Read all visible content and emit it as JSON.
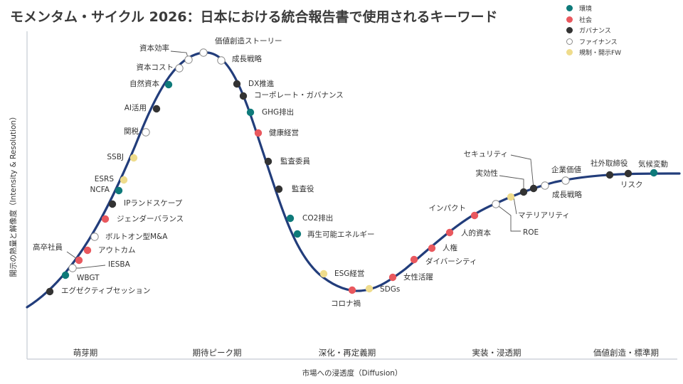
{
  "title": "モメンタム・サイクル 2026：日本における統合報告書で使用されるキーワード",
  "legend": [
    {
      "key": "env",
      "label": "環境",
      "color": "#0e7a7a"
    },
    {
      "key": "soc",
      "label": "社会",
      "color": "#e9585e"
    },
    {
      "key": "gov",
      "label": "ガバナンス",
      "color": "#333333"
    },
    {
      "key": "fin",
      "label": "ファイナンス",
      "color": "#ffffff"
    },
    {
      "key": "reg",
      "label": "規制・開示FW",
      "color": "#efdc8c"
    }
  ],
  "colors": {
    "curve": "#223d7b",
    "axis": "#c5cbd3",
    "finance_border": "#8a8a8a"
  },
  "chart_data": {
    "type": "scatter",
    "title": "",
    "xlabel": "市場への浸透度（Diffusion）",
    "ylabel": "開示の熱量と解像度（Intensity & Resolution）",
    "phases": [
      "萌芽期",
      "期待ピーク期",
      "深化・再定義期",
      "実装・浸透期",
      "価値創造・標準期"
    ],
    "points": [
      {
        "label": "エグゼクティブセッション",
        "cat": "gov"
      },
      {
        "label": "WBGT",
        "cat": "env"
      },
      {
        "label": "IESBA",
        "cat": "fin"
      },
      {
        "label": "高卒社員",
        "cat": "soc"
      },
      {
        "label": "アウトカム",
        "cat": "soc"
      },
      {
        "label": "ボルトオン型M&A",
        "cat": "fin"
      },
      {
        "label": "ジェンダーバランス",
        "cat": "soc"
      },
      {
        "label": "IPランドスケープ",
        "cat": "gov"
      },
      {
        "label": "NCFA",
        "cat": "env"
      },
      {
        "label": "ESRS",
        "cat": "reg"
      },
      {
        "label": "SSBJ",
        "cat": "reg"
      },
      {
        "label": "関税",
        "cat": "fin"
      },
      {
        "label": "AI活用",
        "cat": "gov"
      },
      {
        "label": "自然資本",
        "cat": "env"
      },
      {
        "label": "資本コスト",
        "cat": "fin"
      },
      {
        "label": "資本効率",
        "cat": "fin"
      },
      {
        "label": "価値創造ストーリー",
        "cat": "fin"
      },
      {
        "label": "成長戦略",
        "cat": "fin"
      },
      {
        "label": "DX推進",
        "cat": "gov"
      },
      {
        "label": "コーポレート・ガバナンス",
        "cat": "gov"
      },
      {
        "label": "GHG排出",
        "cat": "env"
      },
      {
        "label": "健康経営",
        "cat": "soc"
      },
      {
        "label": "監査委員",
        "cat": "gov"
      },
      {
        "label": "監査役",
        "cat": "gov"
      },
      {
        "label": "CO2排出",
        "cat": "env"
      },
      {
        "label": "再生可能エネルギー",
        "cat": "env"
      },
      {
        "label": "ESG経営",
        "cat": "reg"
      },
      {
        "label": "コロナ禍",
        "cat": "soc"
      },
      {
        "label": "SDGs",
        "cat": "reg"
      },
      {
        "label": "女性活躍",
        "cat": "soc"
      },
      {
        "label": "ダイバーシティ",
        "cat": "soc"
      },
      {
        "label": "人権",
        "cat": "soc"
      },
      {
        "label": "人的資本",
        "cat": "soc"
      },
      {
        "label": "インパクト",
        "cat": "soc"
      },
      {
        "label": "ROE",
        "cat": "fin"
      },
      {
        "label": "マテリアリティ",
        "cat": "reg"
      },
      {
        "label": "実効性",
        "cat": "gov"
      },
      {
        "label": "セキュリティ",
        "cat": "gov"
      },
      {
        "label": "成長戦略",
        "cat": "fin"
      },
      {
        "label": "企業価値",
        "cat": "fin"
      },
      {
        "label": "社外取締役",
        "cat": "gov"
      },
      {
        "label": "リスク",
        "cat": "gov"
      },
      {
        "label": "気候変動",
        "cat": "env"
      }
    ]
  }
}
